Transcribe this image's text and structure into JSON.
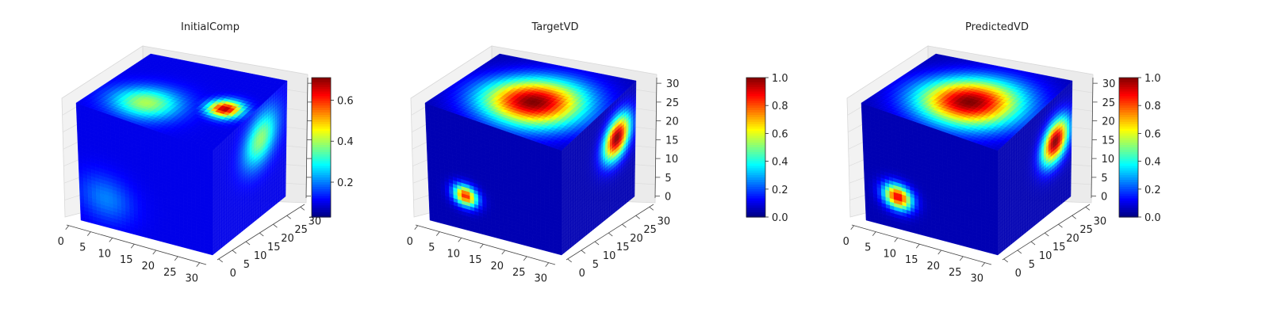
{
  "chart_data": [
    {
      "type": "heatmap",
      "subtype": "3d-voxel-cube",
      "title": "InitialComp",
      "grid_size": [
        32,
        32,
        32
      ],
      "colormap": "jet",
      "axes": {
        "x": {
          "ticks": [
            "0",
            "5",
            "10",
            "15",
            "20",
            "25",
            "30"
          ],
          "range": [
            0,
            32
          ]
        },
        "y": {
          "ticks": [
            "0",
            "5",
            "10",
            "15",
            "20",
            "25",
            "30"
          ],
          "range": [
            0,
            32
          ]
        },
        "z": {
          "ticks": [],
          "range": [
            0,
            32
          ]
        }
      },
      "colorbar": {
        "min": 0.03,
        "max": 0.71,
        "ticks": [
          "0.2",
          "0.4",
          "0.6"
        ]
      },
      "background_value": 0.1,
      "blobs": [
        {
          "face": "top",
          "u": 0.35,
          "v": 0.3,
          "radius": 0.28,
          "value": 0.4
        },
        {
          "face": "top",
          "u": 0.82,
          "v": 0.5,
          "radius": 0.14,
          "value": 0.68
        },
        {
          "face": "right",
          "u": 0.65,
          "v": 0.7,
          "radius": 0.28,
          "value": 0.38
        },
        {
          "face": "front",
          "u": 0.2,
          "v": 0.25,
          "radius": 0.25,
          "value": 0.2
        }
      ]
    },
    {
      "type": "heatmap",
      "subtype": "3d-voxel-cube",
      "title": "TargetVD",
      "grid_size": [
        32,
        32,
        32
      ],
      "colormap": "jet",
      "axes": {
        "x": {
          "ticks": [
            "0",
            "5",
            "10",
            "15",
            "20",
            "25",
            "30"
          ],
          "range": [
            0,
            32
          ]
        },
        "y": {
          "ticks": [
            "0",
            "5",
            "10",
            "15",
            "20",
            "25",
            "30"
          ],
          "range": [
            0,
            32
          ]
        },
        "z": {
          "ticks": [
            "0",
            "5",
            "10",
            "15",
            "20",
            "25",
            "30"
          ],
          "range": [
            0,
            32
          ]
        }
      },
      "colorbar": {
        "min": 0.0,
        "max": 1.0,
        "ticks": [
          "0.0",
          "0.2",
          "0.4",
          "0.6",
          "0.8",
          "1.0"
        ]
      },
      "background_value": 0.05,
      "blobs": [
        {
          "face": "top",
          "u": 0.55,
          "v": 0.45,
          "radius": 0.42,
          "value": 1.0
        },
        {
          "face": "right",
          "u": 0.75,
          "v": 0.65,
          "radius": 0.22,
          "value": 1.0
        },
        {
          "face": "front",
          "u": 0.28,
          "v": 0.3,
          "radius": 0.11,
          "value": 0.85
        }
      ]
    },
    {
      "type": "heatmap",
      "subtype": "3d-voxel-cube",
      "title": "PredictedVD",
      "grid_size": [
        32,
        32,
        32
      ],
      "colormap": "jet",
      "axes": {
        "x": {
          "ticks": [
            "0",
            "5",
            "10",
            "15",
            "20",
            "25",
            "30"
          ],
          "range": [
            0,
            32
          ]
        },
        "y": {
          "ticks": [
            "0",
            "5",
            "10",
            "15",
            "20",
            "25",
            "30"
          ],
          "range": [
            0,
            32
          ]
        },
        "z": {
          "ticks": [
            "0",
            "5",
            "10",
            "15",
            "20",
            "25",
            "30"
          ],
          "range": [
            0,
            32
          ]
        }
      },
      "colorbar": {
        "min": 0.0,
        "max": 1.0,
        "ticks": [
          "0.0",
          "0.2",
          "0.4",
          "0.6",
          "0.8",
          "1.0"
        ]
      },
      "background_value": 0.05,
      "blobs": [
        {
          "face": "top",
          "u": 0.55,
          "v": 0.45,
          "radius": 0.42,
          "value": 1.0
        },
        {
          "face": "right",
          "u": 0.78,
          "v": 0.6,
          "radius": 0.22,
          "value": 1.0
        },
        {
          "face": "front",
          "u": 0.25,
          "v": 0.28,
          "radius": 0.13,
          "value": 0.9
        }
      ]
    }
  ]
}
